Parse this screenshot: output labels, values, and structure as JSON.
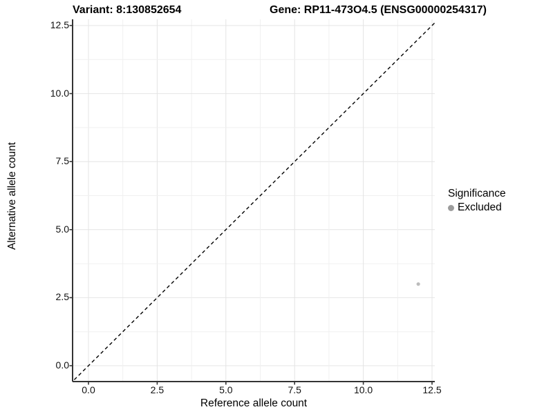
{
  "figure": {
    "title_left": "Variant: 8:130852654",
    "title_right": "Gene: RP11-473O4.5 (ENSG00000254317)"
  },
  "chart_data": {
    "type": "scatter",
    "title": "Variant: 8:130852654   Gene: RP11-473O4.5 (ENSG00000254317)",
    "xlabel": "Reference allele count",
    "ylabel": "Alternative allele count",
    "xlim": [
      -0.58,
      12.6
    ],
    "ylim": [
      -0.58,
      12.73
    ],
    "x_ticks": {
      "values": [
        0,
        2.5,
        5,
        7.5,
        10,
        12.5
      ],
      "labels": [
        "0.0",
        "2.5",
        "5.0",
        "7.5",
        "10.0",
        "12.5"
      ]
    },
    "y_ticks": {
      "values": [
        0,
        2.5,
        5,
        7.5,
        10,
        12.5
      ],
      "labels": [
        "0.0",
        "2.5",
        "5.0",
        "7.5",
        "10.0",
        "12.5"
      ]
    },
    "minor_grid_step": 1.25,
    "grid": true,
    "reference_line": {
      "kind": "identity y=x",
      "style": "dashed",
      "color": "#000000"
    },
    "series": [
      {
        "name": "Excluded",
        "color": "#bcbcbc",
        "points": [
          {
            "x": 12,
            "y": 3
          }
        ]
      }
    ],
    "legend": {
      "title": "Significance",
      "position": "right",
      "items": [
        {
          "label": "Excluded",
          "color": "#9c9c9c"
        }
      ]
    },
    "colors": {
      "major_grid": "#e4e4e4",
      "minor_grid": "#f0f0f0",
      "axis_line": "#333333",
      "panel_background": "#ffffff"
    }
  }
}
